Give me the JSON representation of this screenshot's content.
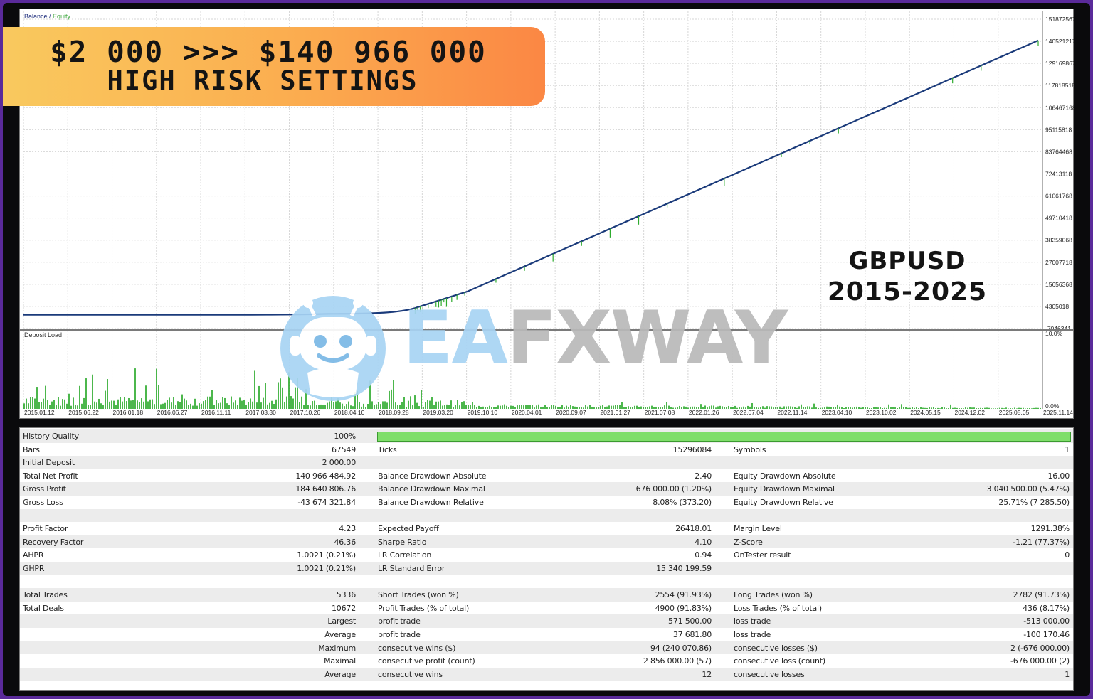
{
  "banner": {
    "line1": "$2 000 >>> $140 966 000",
    "line2": "HIGH RISK SETTINGS"
  },
  "overlay": {
    "pair": "GBPUSD",
    "years": "2015-2025"
  },
  "watermark": {
    "text_blue": "EA",
    "text_gray": "FXWAY",
    "icon": "robot-mascot-icon"
  },
  "chart": {
    "legend_balance": "Balance",
    "legend_sep": " / ",
    "legend_equity": "Equity",
    "deposit_load_label": "Deposit Load",
    "y_labels": [
      "151872567",
      "140521217",
      "129169867",
      "117818518",
      "106467168",
      "95115818",
      "83764468",
      "72413118",
      "61061768",
      "49710418",
      "38359068",
      "27007718",
      "15656368",
      "4305018",
      "-7046341"
    ],
    "dl_top": "10.0%",
    "dl_bottom": "0.0%",
    "x_labels": [
      "2015.01.12",
      "2015.06.22",
      "2016.01.18",
      "2016.06.27",
      "2016.11.11",
      "2017.03.30",
      "2017.10.26",
      "2018.04.10",
      "2018.09.28",
      "2019.03.20",
      "2019.10.10",
      "2020.04.01",
      "2020.09.07",
      "2021.01.27",
      "2021.07.08",
      "2022.01.26",
      "2022.07.04",
      "2022.11.14",
      "2023.04.10",
      "2023.10.02",
      "2024.05.15",
      "2024.12.02",
      "2025.05.05",
      "2025.11.14"
    ],
    "colors": {
      "balance": "#1a3a7a",
      "equity": "#2eab2e",
      "grid": "#d6d6d6",
      "load": "#1fa51f"
    }
  },
  "chart_data": {
    "type": "line",
    "title": "",
    "xlabel": "",
    "ylabel": "",
    "x": [
      "2015.01.12",
      "2018.04.10",
      "2019.03.20",
      "2019.10.10",
      "2025.11.14"
    ],
    "series": [
      {
        "name": "Balance",
        "values": [
          2000,
          500000,
          3500000,
          12000000,
          140966484.92
        ]
      }
    ],
    "ylim": [
      -7046341,
      151872567
    ],
    "grid": true
  },
  "stats": {
    "rows": [
      {
        "c1": "History Quality",
        "v1": "100%",
        "bar": true
      },
      {
        "c1": "Bars",
        "v1": "67549",
        "c2": "Ticks",
        "v2": "15296084",
        "c3": "Symbols",
        "v3": "1"
      },
      {
        "c1": "Initial Deposit",
        "v1": "2 000.00"
      },
      {
        "c1": "Total Net Profit",
        "v1": "140 966 484.92",
        "c2": "Balance Drawdown Absolute",
        "v2": "2.40",
        "c3": "Equity Drawdown Absolute",
        "v3": "16.00"
      },
      {
        "c1": "Gross Profit",
        "v1": "184 640 806.76",
        "c2": "Balance Drawdown Maximal",
        "v2": "676 000.00 (1.20%)",
        "c3": "Equity Drawdown Maximal",
        "v3": "3 040 500.00 (5.47%)"
      },
      {
        "c1": "Gross Loss",
        "v1": "-43 674 321.84",
        "c2": "Balance Drawdown Relative",
        "v2": "8.08% (373.20)",
        "c3": "Equity Drawdown Relative",
        "v3": "25.71% (7 285.50)"
      },
      {},
      {
        "c1": "Profit Factor",
        "v1": "4.23",
        "c2": "Expected Payoff",
        "v2": "26418.01",
        "c3": "Margin Level",
        "v3": "1291.38%"
      },
      {
        "c1": "Recovery Factor",
        "v1": "46.36",
        "c2": "Sharpe Ratio",
        "v2": "4.10",
        "c3": "Z-Score",
        "v3": "-1.21 (77.37%)"
      },
      {
        "c1": "AHPR",
        "v1": "1.0021 (0.21%)",
        "c2": "LR Correlation",
        "v2": "0.94",
        "c3": "OnTester result",
        "v3": "0"
      },
      {
        "c1": "GHPR",
        "v1": "1.0021 (0.21%)",
        "c2": "LR Standard Error",
        "v2": "15 340 199.59"
      },
      {},
      {
        "c1": "Total Trades",
        "v1": "5336",
        "c2": "Short Trades (won %)",
        "v2": "2554 (91.93%)",
        "c3": "Long Trades (won %)",
        "v3": "2782 (91.73%)"
      },
      {
        "c1": "Total Deals",
        "v1": "10672",
        "c2": "Profit Trades (% of total)",
        "v2": "4900 (91.83%)",
        "c3": "Loss Trades (% of total)",
        "v3": "436 (8.17%)"
      },
      {
        "v1": "Largest",
        "c2": "profit trade",
        "v2": "571 500.00",
        "c3": "loss trade",
        "v3": "-513 000.00"
      },
      {
        "v1": "Average",
        "c2": "profit trade",
        "v2": "37 681.80",
        "c3": "loss trade",
        "v3": "-100 170.46"
      },
      {
        "v1": "Maximum",
        "c2": "consecutive wins ($)",
        "v2": "94 (240 070.86)",
        "c3": "consecutive losses ($)",
        "v3": "2 (-676 000.00)"
      },
      {
        "v1": "Maximal",
        "c2": "consecutive profit (count)",
        "v2": "2 856 000.00 (57)",
        "c3": "consecutive loss (count)",
        "v3": "-676 000.00 (2)"
      },
      {
        "v1": "Average",
        "c2": "consecutive wins",
        "v2": "12",
        "c3": "consecutive losses",
        "v3": "1"
      }
    ]
  }
}
